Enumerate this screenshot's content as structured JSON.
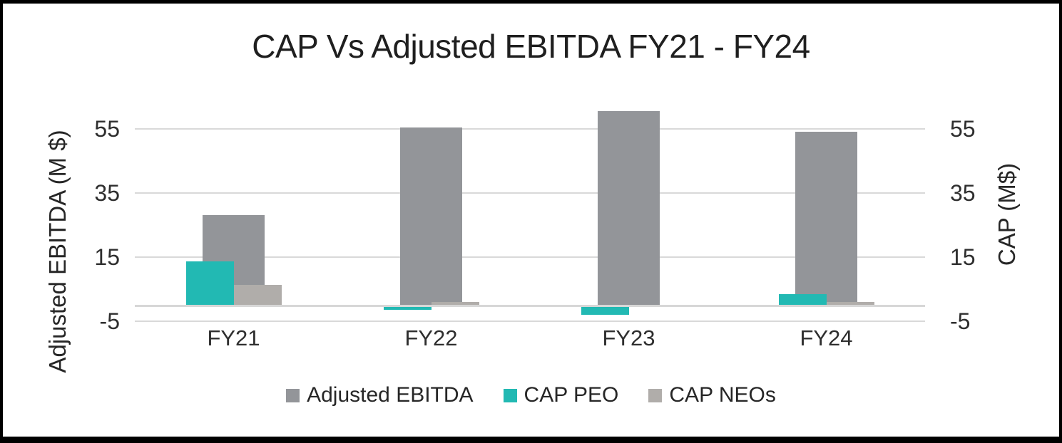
{
  "chart_data": {
    "type": "bar",
    "title": "CAP Vs Adjusted EBITDA FY21 - FY24",
    "categories": [
      "FY21",
      "FY22",
      "FY23",
      "FY24"
    ],
    "series": [
      {
        "name": "Adjusted EBITDA",
        "axis": "primary",
        "color": "#939599",
        "values": [
          28,
          55.5,
          60.5,
          54
        ]
      },
      {
        "name": "CAP PEO",
        "axis": "secondary",
        "color": "#22B9B3",
        "values": [
          13.7,
          -1.5,
          -3,
          3.5
        ]
      },
      {
        "name": "CAP NEOs",
        "axis": "secondary",
        "color": "#B0ADAA",
        "values": [
          6.3,
          1,
          0,
          1
        ]
      }
    ],
    "ylabel_left": "Adjusted EBITDA (M $)",
    "ylabel_right": "CAP (M$)",
    "yticks": [
      55,
      35,
      15,
      -5
    ],
    "ylim": [
      -5,
      62
    ],
    "grid": true,
    "legend_position": "bottom",
    "gridline_color": "#D9D9D9",
    "zero_line_color": "#D7D7D7",
    "text_color": "#262626",
    "border_color": "#000000"
  }
}
